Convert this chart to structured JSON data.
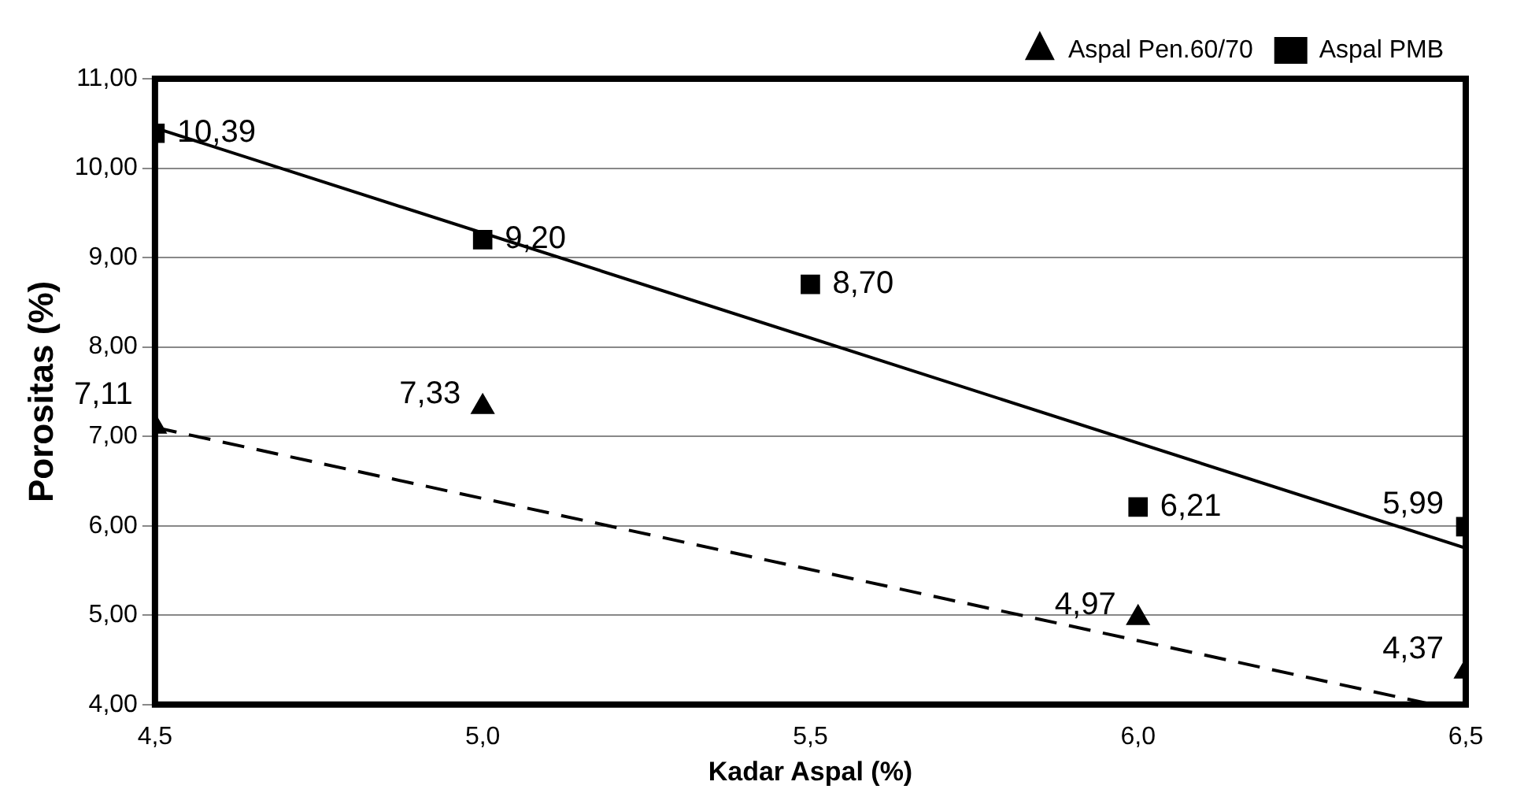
{
  "chart_data": {
    "type": "scatter",
    "xlabel": "Kadar Aspal (%)",
    "ylabel": "Porositas (%)",
    "xlim": [
      4.5,
      6.5
    ],
    "xticks": [
      {
        "value": 4.5,
        "label": "4,5"
      },
      {
        "value": 5,
        "label": "5,0"
      },
      {
        "value": 5.5,
        "label": "5,5"
      },
      {
        "value": 6,
        "label": "6,0"
      },
      {
        "value": 6.5,
        "label": "6,5"
      }
    ],
    "ylim": [
      4,
      11
    ],
    "yticks": [
      {
        "value": 4,
        "label": "4,00"
      },
      {
        "value": 5,
        "label": "5,00"
      },
      {
        "value": 6,
        "label": "6,00"
      },
      {
        "value": 7,
        "label": "7,00"
      },
      {
        "value": 8,
        "label": "8,00"
      },
      {
        "value": 9,
        "label": "9,00"
      },
      {
        "value": 10,
        "label": "10,00"
      },
      {
        "value": 11,
        "label": "11,00"
      }
    ],
    "grid": "y",
    "legend": "top right",
    "series": [
      {
        "name": "Aspal Pen.60/70",
        "type": "scatter",
        "marker": "triangle",
        "line_style": "dashed",
        "color": "#000000",
        "x": [
          4.5,
          5,
          6,
          6.5
        ],
        "values": [
          7.11,
          7.33,
          4.97,
          4.37
        ],
        "value_labels": [
          "7,11",
          "7,33",
          "4,97",
          "4,37"
        ]
      },
      {
        "name": "Aspal PMB",
        "type": "scatter",
        "marker": "square",
        "line_style": "solid",
        "color": "#000000",
        "x": [
          4.5,
          5,
          5.5,
          6,
          6.5
        ],
        "values": [
          10.39,
          9.2,
          8.7,
          6.21,
          5.99
        ],
        "value_labels": [
          "10,39",
          "9,20",
          "8,70",
          "6,21",
          "5,99"
        ]
      },
      {
        "type": "line",
        "marker": "none",
        "line_style": "dashed",
        "color": "#000000",
        "x": [
          4.5,
          6.45
        ],
        "values": [
          7.1,
          4.0
        ]
      },
      {
        "type": "line",
        "marker": "none",
        "line_style": "solid",
        "color": "#000000",
        "x": [
          4.5,
          6.5
        ],
        "values": [
          10.45,
          5.75
        ]
      }
    ]
  }
}
